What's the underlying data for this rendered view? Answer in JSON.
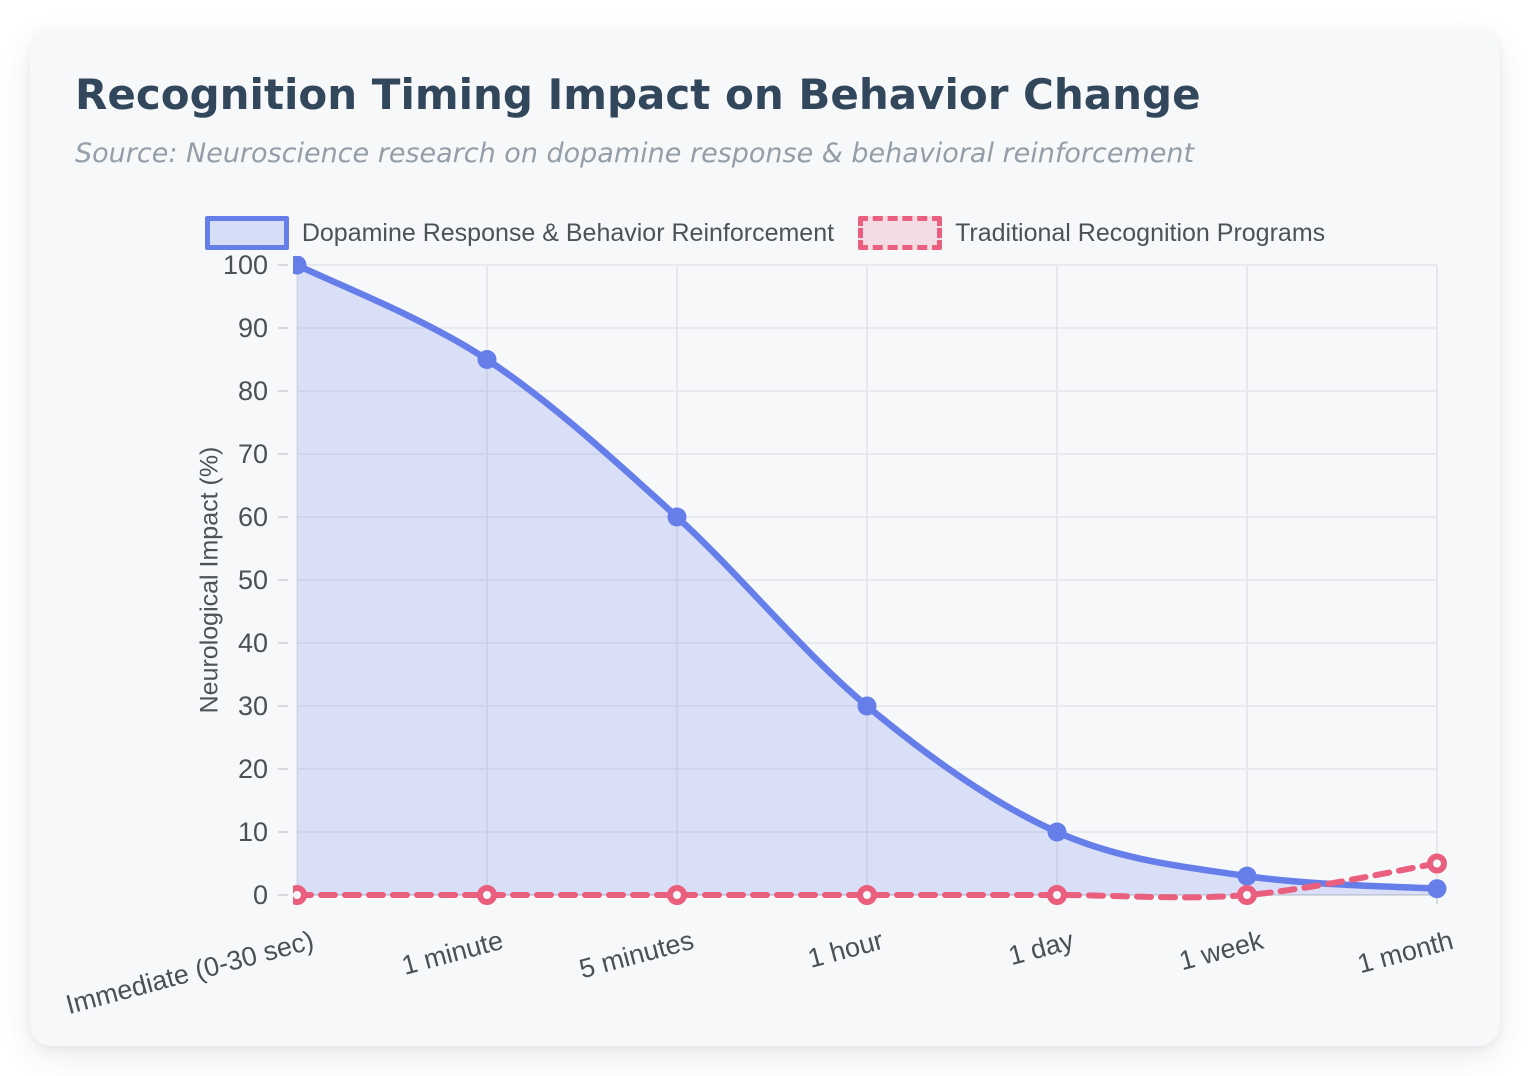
{
  "header": {
    "title": "Recognition Timing Impact on Behavior Change",
    "subtitle": "Source: Neuroscience research on dopamine response & behavioral reinforcement"
  },
  "chart_data": {
    "type": "line",
    "title": "Recognition Timing Impact on Behavior Change",
    "source_note": "Source: Neuroscience research on dopamine response & behavioral reinforcement",
    "categories": [
      "Immediate (0-30 sec)",
      "1 minute",
      "5 minutes",
      "1 hour",
      "1 day",
      "1 week",
      "1 month"
    ],
    "series": [
      {
        "name": "Dopamine Response & Behavior Reinforcement",
        "values": [
          100,
          85,
          60,
          30,
          10,
          3,
          1
        ],
        "color": "#667eea",
        "legend_fill": "rgba(102,126,234,0.22)",
        "area_fill": "rgba(102,126,234,0.20)",
        "line_style": "solid",
        "point_style": "filled-circle"
      },
      {
        "name": "Traditional Recognition Programs",
        "values": [
          0,
          0,
          0,
          0,
          0,
          0,
          5
        ],
        "color": "#ea5f7d",
        "legend_fill": "rgba(234,95,125,0.18)",
        "area_fill": null,
        "line_style": "dashed",
        "point_style": "ring-circle"
      }
    ],
    "xlabel": "",
    "ylabel": "Neurological Impact (%)",
    "ylim": [
      0,
      100
    ],
    "yticks": [
      0,
      10,
      20,
      30,
      40,
      50,
      60,
      70,
      80,
      90,
      100
    ],
    "grid": true,
    "grid_color": "#e4e5e9",
    "legend_position": "top",
    "x_label_rotation_deg": -15
  }
}
